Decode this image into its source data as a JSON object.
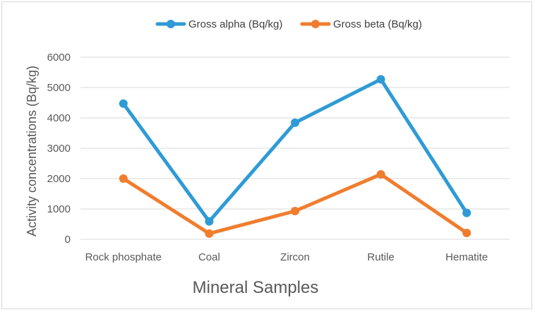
{
  "chart_data": {
    "type": "line",
    "title": "",
    "xlabel": "Mineral Samples",
    "ylabel": "Activity concentrations (Bq/kg)",
    "categories": [
      "Rock phosphate",
      "Coal",
      "Zircon",
      "Rutile",
      "Hematite"
    ],
    "ylim": [
      0,
      6000
    ],
    "yticks": [
      0,
      1000,
      2000,
      3000,
      4000,
      5000,
      6000
    ],
    "grid": true,
    "legend_position": "top",
    "series": [
      {
        "name": "Gross alpha (Bq/kg)",
        "color": "#2e9bd6",
        "values": [
          4470,
          590,
          3840,
          5270,
          870
        ]
      },
      {
        "name": "Gross beta  (Bq/kg)",
        "color": "#f07d2e",
        "values": [
          2000,
          190,
          930,
          2140,
          210
        ]
      }
    ]
  }
}
